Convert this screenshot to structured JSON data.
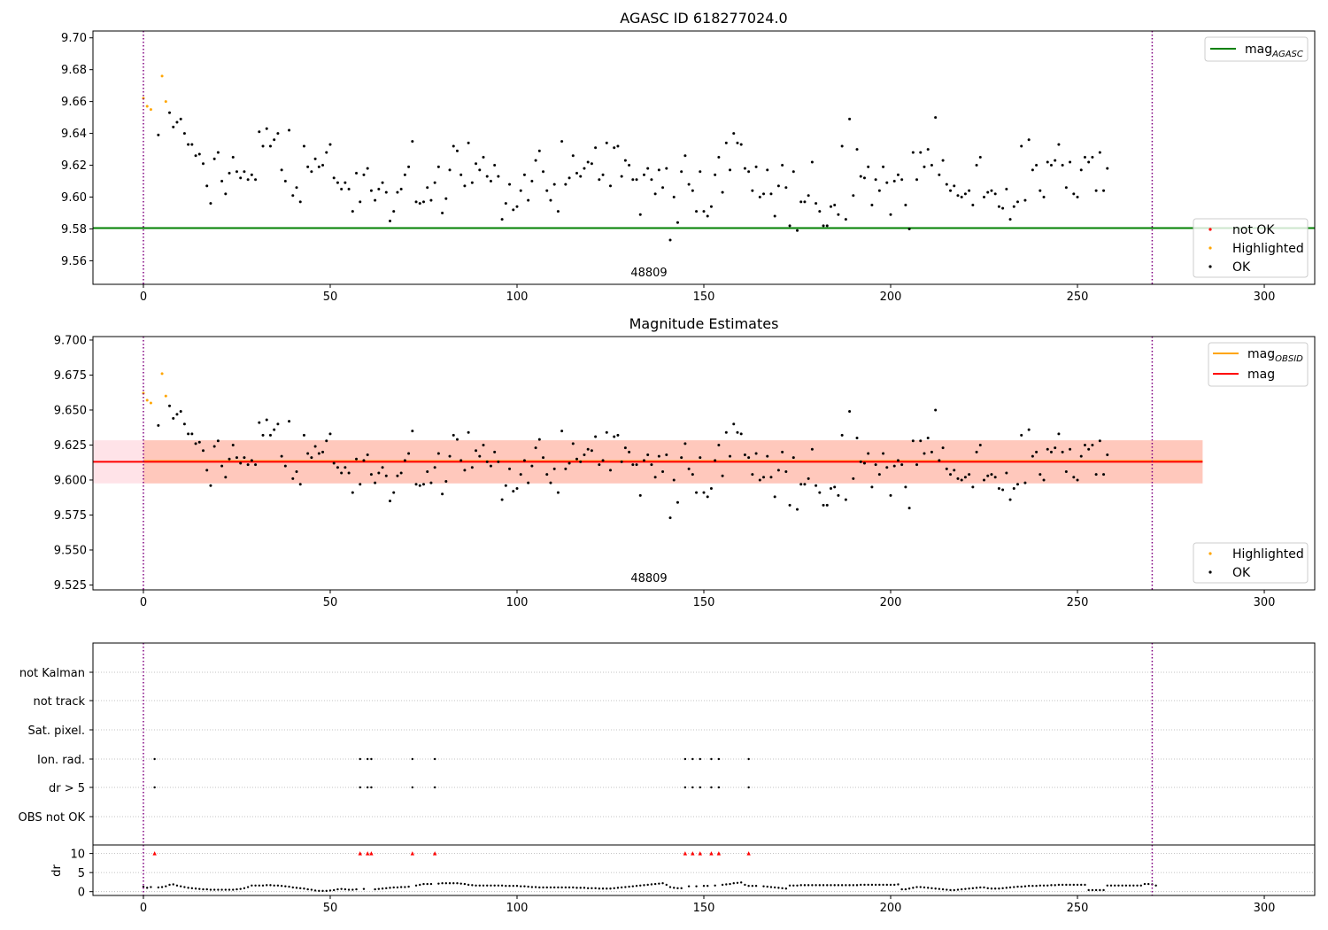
{
  "panel1": {
    "title": "AGASC ID 618277024.0",
    "annotation": "48809",
    "vlines": [
      0,
      270
    ],
    "xlim": [
      -13.5,
      313.5
    ],
    "ylim": [
      9.5452,
      9.7043
    ],
    "xticks": [
      {
        "v": 0,
        "l": "0"
      },
      {
        "v": 50,
        "l": "50"
      },
      {
        "v": 100,
        "l": "100"
      },
      {
        "v": 150,
        "l": "150"
      },
      {
        "v": 200,
        "l": "200"
      },
      {
        "v": 250,
        "l": "250"
      },
      {
        "v": 300,
        "l": "300"
      }
    ],
    "yticks": [
      {
        "v": 9.56,
        "l": "9.56"
      },
      {
        "v": 9.58,
        "l": "9.58"
      },
      {
        "v": 9.6,
        "l": "9.60"
      },
      {
        "v": 9.62,
        "l": "9.62"
      },
      {
        "v": 9.64,
        "l": "9.64"
      },
      {
        "v": 9.66,
        "l": "9.66"
      },
      {
        "v": 9.68,
        "l": "9.68"
      },
      {
        "v": 9.7,
        "l": "9.70"
      }
    ],
    "mag_agasc": 9.5805,
    "legend_upper": {
      "mag_main": "mag",
      "mag_sub": "AGASC"
    },
    "legend_lower": [
      "not OK",
      "Highlighted",
      "OK"
    ]
  },
  "panel2": {
    "title": "Magnitude Estimates",
    "annotation": "48809",
    "vlines": [
      0,
      270
    ],
    "xlim": [
      -13.5,
      313.5
    ],
    "ylim": [
      9.5215,
      9.7025
    ],
    "xticks": [
      {
        "v": 0,
        "l": "0"
      },
      {
        "v": 50,
        "l": "50"
      },
      {
        "v": 100,
        "l": "100"
      },
      {
        "v": 150,
        "l": "150"
      },
      {
        "v": 200,
        "l": "200"
      },
      {
        "v": 250,
        "l": "250"
      },
      {
        "v": 300,
        "l": "300"
      }
    ],
    "yticks": [
      {
        "v": 9.525,
        "l": "9.525"
      },
      {
        "v": 9.55,
        "l": "9.550"
      },
      {
        "v": 9.575,
        "l": "9.575"
      },
      {
        "v": 9.6,
        "l": "9.600"
      },
      {
        "v": 9.625,
        "l": "9.625"
      },
      {
        "v": 9.65,
        "l": "9.650"
      },
      {
        "v": 9.675,
        "l": "9.675"
      },
      {
        "v": 9.7,
        "l": "9.700"
      }
    ],
    "mag": 9.613,
    "mag_obsid": 9.6135,
    "band_outer": {
      "x": [
        -13.5,
        283.5
      ],
      "y": [
        9.5976,
        9.6284
      ]
    },
    "band_inner": {
      "x": [
        0,
        283.5
      ],
      "y": [
        9.5976,
        9.6284
      ]
    },
    "legend_upper": [
      {
        "main": "mag",
        "sub": "OBSID"
      },
      {
        "main": "mag",
        "sub": ""
      }
    ],
    "legend_lower": [
      "Highlighted",
      "OK"
    ]
  },
  "panel3": {
    "flag_labels": [
      "not Kalman",
      "not track",
      "Sat. pixel.",
      "Ion. rad.",
      "dr > 5",
      "OBS not OK"
    ],
    "flag_points": {
      "Ion. rad.": [
        3,
        58,
        60,
        61,
        72,
        78,
        145,
        147,
        149,
        152,
        154,
        162
      ],
      "dr > 5": [
        3,
        58,
        60,
        61,
        72,
        78,
        145,
        147,
        149,
        152,
        154,
        162
      ]
    },
    "dr_ylabel": "dr",
    "dr_yticks": [
      {
        "v": 0,
        "l": "0"
      },
      {
        "v": 5,
        "l": "5"
      },
      {
        "v": 10,
        "l": "10"
      }
    ],
    "dr_ylim": [
      -1,
      12
    ],
    "dr_clipped_x": [
      3,
      58,
      60,
      61,
      72,
      78,
      145,
      147,
      149,
      152,
      154,
      162
    ],
    "vlines": [
      0,
      270
    ],
    "xlim": [
      -13.5,
      313.5
    ],
    "xticks": [
      {
        "v": 0,
        "l": "0"
      },
      {
        "v": 50,
        "l": "50"
      },
      {
        "v": 100,
        "l": "100"
      },
      {
        "v": 150,
        "l": "150"
      },
      {
        "v": 200,
        "l": "200"
      },
      {
        "v": 250,
        "l": "250"
      },
      {
        "v": 300,
        "l": "300"
      }
    ]
  },
  "colors": {
    "ok": "#000000",
    "highlighted": "#ffa500",
    "not_ok": "#ff0000",
    "mag_agasc_line": "#008000",
    "mag_line": "#ff0000",
    "mag_obsid_line": "#ffa500",
    "vline": "#800080",
    "band_outer": "#ffc0cb",
    "band_inner": "#ffa07a",
    "grid": "#b0b0b0"
  },
  "chart_data": [
    {
      "type": "scatter",
      "title": "AGASC ID 618277024.0",
      "xlabel": "",
      "ylabel": "",
      "xlim": [
        -13.5,
        313.5
      ],
      "ylim": [
        9.5452,
        9.7043
      ],
      "grid": false,
      "legend": [
        "top-right",
        "bottom-right"
      ],
      "series": [
        {
          "name": "Highlighted",
          "x": [
            0,
            1,
            2,
            5,
            6
          ],
          "y": [
            9.662,
            9.657,
            9.655,
            9.676,
            9.66
          ]
        },
        {
          "name": "OK",
          "x": "0..270 excluding highlighted",
          "y": "magnitude per observation (see ok_y)"
        },
        {
          "name": "mag_AGASC",
          "line_y": 9.5805
        }
      ]
    },
    {
      "type": "scatter",
      "title": "Magnitude Estimates",
      "xlabel": "",
      "ylabel": "",
      "xlim": [
        -13.5,
        313.5
      ],
      "ylim": [
        9.5215,
        9.7025
      ],
      "legend": [
        "top-right",
        "bottom-right"
      ],
      "series": [
        {
          "name": "Highlighted",
          "x": [
            0,
            1,
            2,
            5,
            6
          ],
          "y": [
            9.662,
            9.657,
            9.655,
            9.676,
            9.66
          ]
        },
        {
          "name": "OK",
          "y_ref": "ok_y"
        },
        {
          "name": "mag_OBSID",
          "line_y": 9.6135
        },
        {
          "name": "mag",
          "line_y": 9.613
        }
      ]
    },
    {
      "type": "scatter",
      "title": "",
      "ylabel": "dr",
      "categories": [
        "not Kalman",
        "not track",
        "Sat. pixel.",
        "Ion. rad.",
        "dr > 5",
        "OBS not OK"
      ],
      "xlim": [
        -13.5,
        313.5
      ],
      "ylim": [
        -1,
        12
      ]
    }
  ],
  "ok_y": [
    9.639,
    9.653,
    9.644,
    9.647,
    9.649,
    9.64,
    9.633,
    9.633,
    9.626,
    9.627,
    9.621,
    9.607,
    9.596,
    9.624,
    9.628,
    9.61,
    9.602,
    9.615,
    9.625,
    9.616,
    9.612,
    9.616,
    9.611,
    9.614,
    9.611,
    9.641,
    9.632,
    9.643,
    9.632,
    9.636,
    9.64,
    9.617,
    9.61,
    9.642,
    9.601,
    9.606,
    9.597,
    9.632,
    9.619,
    9.616,
    9.624,
    9.619,
    9.62,
    9.628,
    9.633,
    9.612,
    9.609,
    9.605,
    9.609,
    9.605,
    9.591,
    9.615,
    9.597,
    9.614,
    9.618,
    9.604,
    9.598,
    9.605,
    9.609,
    9.603,
    9.585,
    9.591,
    9.603,
    9.605,
    9.614,
    9.619,
    9.635,
    9.597,
    9.596,
    9.597,
    9.606,
    9.598,
    9.609,
    9.619,
    9.59,
    9.599,
    9.617,
    9.632,
    9.629,
    9.614,
    9.607,
    9.634,
    9.609,
    9.621,
    9.617,
    9.625,
    9.613,
    9.61,
    9.62,
    9.613,
    9.586,
    9.596,
    9.608,
    9.592,
    9.594,
    9.604,
    9.614,
    9.598,
    9.61,
    9.623,
    9.629,
    9.616,
    9.604,
    9.598,
    9.608,
    9.591,
    9.635,
    9.608,
    9.612,
    9.626,
    9.615,
    9.613,
    9.618,
    9.622,
    9.621,
    9.631,
    9.611,
    9.614,
    9.634,
    9.607,
    9.631,
    9.632,
    9.613,
    9.623,
    9.62,
    9.611,
    9.611,
    9.589,
    9.614,
    9.618,
    9.611,
    9.602,
    9.617,
    9.606,
    9.618,
    9.573,
    9.6,
    9.584,
    9.616,
    9.626,
    9.608,
    9.604,
    9.591,
    9.616,
    9.591,
    9.588,
    9.594,
    9.614,
    9.625,
    9.603,
    9.634,
    9.617,
    9.64,
    9.634,
    9.633,
    9.618,
    9.616,
    9.604,
    9.619,
    9.6,
    9.602,
    9.617,
    9.602,
    9.588,
    9.607,
    9.62,
    9.606,
    9.582,
    9.616,
    9.579,
    9.597,
    9.597,
    9.601,
    9.622,
    9.596,
    9.591,
    9.582,
    9.582,
    9.594,
    9.595,
    9.589,
    9.632,
    9.586,
    9.649,
    9.601,
    9.63,
    9.613,
    9.612,
    9.619,
    9.595,
    9.611,
    9.604,
    9.619,
    9.609,
    9.589,
    9.61,
    9.614,
    9.611,
    9.595,
    9.58,
    9.628,
    9.611,
    9.628,
    9.619,
    9.63,
    9.62,
    9.65,
    9.614,
    9.623,
    9.608,
    9.604,
    9.607,
    9.601,
    9.6,
    9.602,
    9.604,
    9.595,
    9.62,
    9.625,
    9.6,
    9.603,
    9.604,
    9.602,
    9.594,
    9.593,
    9.605,
    9.586,
    9.594,
    9.597,
    9.632,
    9.598,
    9.636,
    9.617,
    9.62,
    9.604,
    9.6,
    9.622,
    9.62,
    9.623,
    9.633,
    9.62,
    9.606,
    9.622,
    9.602,
    9.6,
    9.617,
    9.625,
    9.622,
    9.625,
    9.604,
    9.628,
    9.604,
    9.618
  ],
  "dr_values": [
    1.3,
    1.0,
    1.2,
    0,
    1.1,
    1.2,
    1.4,
    1.8,
    1.9,
    1.6,
    1.4,
    1.2,
    1.0,
    0.9,
    0.8,
    0.7,
    0.6,
    0.6,
    0.5,
    0.5,
    0.5,
    0.5,
    0.5,
    0.5,
    0.5,
    0.6,
    0.7,
    0.9,
    1.2,
    1.6,
    1.6,
    1.6,
    1.6,
    1.7,
    1.7,
    1.6,
    1.6,
    1.5,
    1.4,
    1.3,
    1.1,
    1.0,
    0.9,
    0.8,
    0.6,
    0.5,
    0.3,
    0.2,
    0.2,
    0.2,
    0.3,
    0.4,
    0.6,
    0.7,
    0.6,
    0.5,
    0.5,
    0.6,
    0,
    0.7,
    0,
    0,
    0.6,
    0.7,
    0.8,
    0.9,
    1.0,
    1.1,
    1.1,
    1.2,
    1.2,
    1.3,
    0,
    1.6,
    1.8,
    2.0,
    2.0,
    2.0,
    0,
    2.1,
    2.2,
    2.2,
    2.2,
    2.2,
    2.2,
    2.1,
    2.0,
    1.8,
    1.7,
    1.6,
    1.6,
    1.6,
    1.6,
    1.6,
    1.6,
    1.6,
    1.6,
    1.5,
    1.5,
    1.5,
    1.5,
    1.4,
    1.4,
    1.3,
    1.2,
    1.2,
    1.1,
    1.1,
    1.1,
    1.1,
    1.1,
    1.1,
    1.1,
    1.1,
    1.1,
    1.1,
    1.0,
    1.0,
    1.0,
    0.9,
    0.9,
    0.9,
    0.8,
    0.8,
    0.8,
    0.8,
    0.9,
    1.0,
    1.1,
    1.2,
    1.3,
    1.4,
    1.5,
    1.6,
    1.7,
    1.8,
    1.9,
    2.0,
    2.1,
    2.2,
    1.8,
    1.2,
    1.0,
    0.9,
    0.9,
    0,
    1.4,
    0,
    1.4,
    0,
    1.5,
    1.5,
    0,
    1.6,
    0,
    1.8,
    1.9,
    2.0,
    2.2,
    2.3,
    2.4,
    1.8,
    1.5,
    1.5,
    1.5,
    0,
    1.4,
    1.3,
    1.2,
    1.1,
    1.0,
    0.9,
    0.8,
    1.6,
    1.6,
    1.6,
    1.7,
    1.7,
    1.7,
    1.7,
    1.7,
    1.7,
    1.7,
    1.7,
    1.7,
    1.7,
    1.7,
    1.7,
    1.7,
    1.7,
    1.7,
    1.7,
    1.8,
    1.8,
    1.8,
    1.8,
    1.8,
    1.8,
    1.8,
    1.8,
    1.8,
    1.8,
    1.9,
    0.6,
    0.6,
    0.8,
    1.0,
    1.2,
    1.2,
    1.1,
    1.0,
    0.9,
    0.8,
    0.7,
    0.6,
    0.5,
    0.4,
    0.4,
    0.5,
    0.6,
    0.7,
    0.8,
    0.9,
    1.0,
    1.1,
    1.1,
    0.9,
    0.8,
    0.8,
    0.8,
    0.9,
    1.0,
    1.1,
    1.2,
    1.3,
    1.3,
    1.4,
    1.5,
    1.5,
    1.5,
    1.6,
    1.6,
    1.6,
    1.7,
    1.7,
    1.8,
    1.8,
    1.8,
    1.8,
    1.8,
    1.8,
    1.8,
    1.8,
    0.4,
    0.4,
    0.4,
    0.4,
    0.4,
    1.6,
    1.6,
    1.6,
    1.6,
    1.6,
    1.6,
    1.6,
    1.6,
    1.6,
    1.6,
    2.0,
    2.0,
    1.9,
    1.6
  ]
}
